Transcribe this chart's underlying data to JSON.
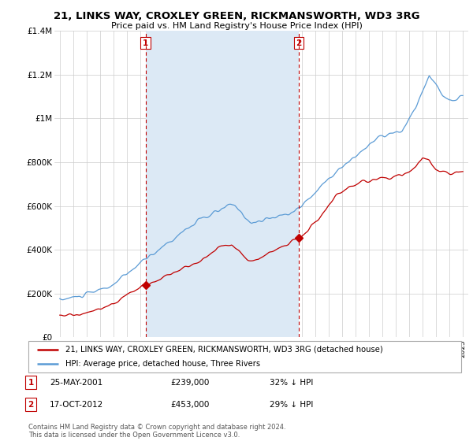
{
  "title": "21, LINKS WAY, CROXLEY GREEN, RICKMANSWORTH, WD3 3RG",
  "subtitle": "Price paid vs. HM Land Registry's House Price Index (HPI)",
  "legend_line1": "21, LINKS WAY, CROXLEY GREEN, RICKMANSWORTH, WD3 3RG (detached house)",
  "legend_line2": "HPI: Average price, detached house, Three Rivers",
  "annotation1_date": "25-MAY-2001",
  "annotation1_price": "£239,000",
  "annotation1_hpi": "32% ↓ HPI",
  "annotation2_date": "17-OCT-2012",
  "annotation2_price": "£453,000",
  "annotation2_hpi": "29% ↓ HPI",
  "footer": "Contains HM Land Registry data © Crown copyright and database right 2024.\nThis data is licensed under the Open Government Licence v3.0.",
  "hpi_color": "#5b9bd5",
  "price_color": "#c00000",
  "vline_color": "#c00000",
  "shade_color": "#dce9f5",
  "background_color": "#ffffff",
  "ylim": [
    0,
    1400000
  ],
  "yticks": [
    0,
    200000,
    400000,
    600000,
    800000,
    1000000,
    1200000,
    1400000
  ],
  "ytick_labels": [
    "£0",
    "£200K",
    "£400K",
    "£600K",
    "£800K",
    "£1M",
    "£1.2M",
    "£1.4M"
  ],
  "sale1_year": 2001.38,
  "sale1_price": 239000,
  "sale2_year": 2012.79,
  "sale2_price": 453000
}
